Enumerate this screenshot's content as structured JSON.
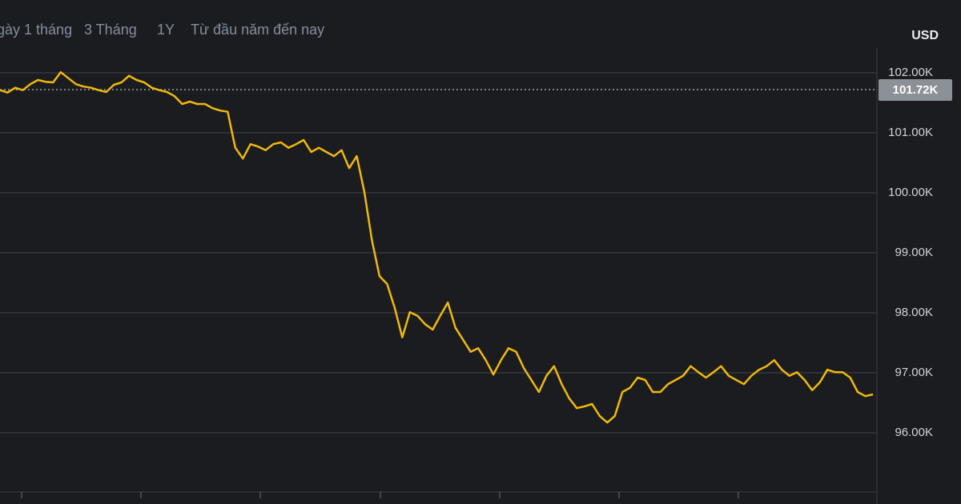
{
  "chart_data": {
    "type": "line",
    "range_buttons": [
      "gày 1 tháng",
      "3 Tháng",
      "1Y",
      "Từ đầu năm đến nay"
    ],
    "unit": "USD",
    "color": "#f0b90b",
    "grid": true,
    "ylim": [
      94813,
      103213
    ],
    "yticks": [
      {
        "value": 96000,
        "label": "96.00K"
      },
      {
        "value": 97000,
        "label": "97.00K"
      },
      {
        "value": 98000,
        "label": "98.00K"
      },
      {
        "value": 99000,
        "label": "99.00K"
      },
      {
        "value": 100000,
        "label": "100.00K"
      },
      {
        "value": 101000,
        "label": "101.00K"
      },
      {
        "value": 102000,
        "label": "102.00K"
      }
    ],
    "reference_line": {
      "value": 101720,
      "label": "101.72K"
    },
    "values": [
      101710,
      101670,
      101750,
      101710,
      101810,
      101880,
      101850,
      101840,
      102010,
      101910,
      101810,
      101770,
      101750,
      101710,
      101680,
      101800,
      101840,
      101950,
      101880,
      101840,
      101750,
      101710,
      101680,
      101610,
      101480,
      101520,
      101480,
      101480,
      101410,
      101370,
      101350,
      100750,
      100570,
      100810,
      100770,
      100710,
      100810,
      100840,
      100750,
      100810,
      100880,
      100680,
      100750,
      100680,
      100610,
      100710,
      100410,
      100610,
      100010,
      99210,
      98610,
      98480,
      98080,
      97590,
      98010,
      97950,
      97810,
      97720,
      97950,
      98170,
      97750,
      97550,
      97350,
      97410,
      97210,
      96970,
      97210,
      97410,
      97350,
      97080,
      96880,
      96680,
      96950,
      97110,
      96810,
      96570,
      96410,
      96440,
      96480,
      96280,
      96170,
      96280,
      96680,
      96750,
      96920,
      96880,
      96680,
      96680,
      96810,
      96880,
      96950,
      97110,
      97010,
      96920,
      97010,
      97110,
      96950,
      96880,
      96810,
      96950,
      97050,
      97110,
      97210,
      97050,
      96950,
      97010,
      96880,
      96710,
      96840,
      97050,
      97010,
      97010,
      96920,
      96680,
      96610,
      96640
    ]
  }
}
